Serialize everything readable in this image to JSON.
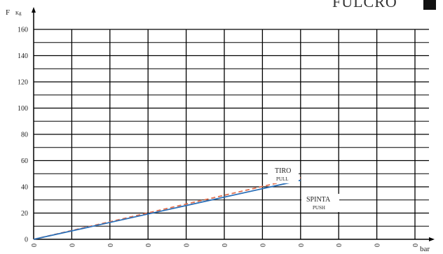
{
  "brand": {
    "text": "FULCRO"
  },
  "chart_data": {
    "type": "line",
    "ylabel": "F",
    "ylabel_unit": "Kg",
    "xlabel": "bar",
    "ylim": [
      0,
      160
    ],
    "yticks": [
      0,
      20,
      40,
      60,
      80,
      100,
      120,
      140,
      160
    ],
    "xlim": [
      0,
      10
    ],
    "xticks": [
      "0",
      "0",
      "0",
      "0",
      "0",
      "0",
      "0",
      "0",
      "0",
      "0",
      "0"
    ],
    "grid": true,
    "series": [
      {
        "name": "TIRO",
        "name_en": "PULL",
        "style": "dashed",
        "color": "#e07050",
        "x": [
          0,
          7
        ],
        "y": [
          0,
          47
        ]
      },
      {
        "name": "SPINTA",
        "name_en": "PUSH",
        "style": "solid",
        "color": "#2a6fb8",
        "x": [
          0,
          7
        ],
        "y": [
          0,
          45
        ]
      }
    ]
  },
  "colors": {
    "grid": "#000000",
    "pull": "#e07050",
    "push": "#2a6fb8"
  }
}
